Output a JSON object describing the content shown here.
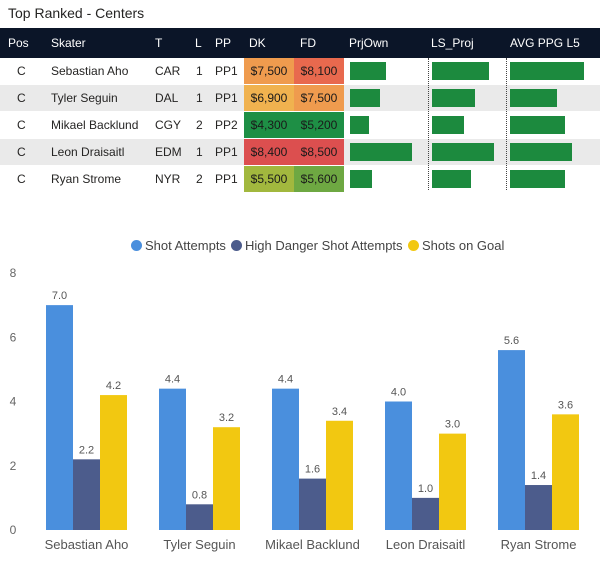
{
  "title": "Top Ranked - Centers",
  "table": {
    "headers": [
      "Pos",
      "Skater",
      "T",
      "L",
      "PP",
      "DK",
      "FD",
      "PrjOwn",
      "LS_Proj",
      "AVG PPG L5"
    ],
    "rows": [
      {
        "pos": "C",
        "skater": "Sebastian Aho",
        "team": "CAR",
        "line": "1",
        "pp": "PP1",
        "dk": "$7,500",
        "fd": "$8,100",
        "dk_color": "#ef9b4e",
        "fd_color": "#e8694e",
        "prjown": 0.48,
        "ls_proj": 0.82,
        "avg_ppg": 0.97
      },
      {
        "pos": "C",
        "skater": "Tyler Seguin",
        "team": "DAL",
        "line": "1",
        "pp": "PP1",
        "dk": "$6,900",
        "fd": "$7,500",
        "dk_color": "#f0b24f",
        "fd_color": "#ef9b4e",
        "prjown": 0.4,
        "ls_proj": 0.62,
        "avg_ppg": 0.62
      },
      {
        "pos": "C",
        "skater": "Mikael Backlund",
        "team": "CGY",
        "line": "2",
        "pp": "PP2",
        "dk": "$4,300",
        "fd": "$5,200",
        "dk_color": "#1e8f45",
        "fd_color": "#1e8f45",
        "prjown": 0.25,
        "ls_proj": 0.47,
        "avg_ppg": 0.72
      },
      {
        "pos": "C",
        "skater": "Leon Draisaitl",
        "team": "EDM",
        "line": "1",
        "pp": "PP1",
        "dk": "$8,400",
        "fd": "$8,500",
        "dk_color": "#dc4f4f",
        "fd_color": "#dc4f4f",
        "prjown": 0.84,
        "ls_proj": 0.9,
        "avg_ppg": 0.82
      },
      {
        "pos": "C",
        "skater": "Ryan Strome",
        "team": "NYR",
        "line": "2",
        "pp": "PP1",
        "dk": "$5,500",
        "fd": "$5,600",
        "dk_color": "#a2b83e",
        "fd_color": "#6ea842",
        "prjown": 0.3,
        "ls_proj": 0.57,
        "avg_ppg": 0.72
      }
    ],
    "bar_color": "#1c8a3e"
  },
  "chart_data": {
    "type": "bar",
    "title": "",
    "categories": [
      "Sebastian Aho",
      "Tyler Seguin",
      "Mikael Backlund",
      "Leon Draisaitl",
      "Ryan Strome"
    ],
    "series": [
      {
        "name": "Shot Attempts",
        "color": "#4a8fdd",
        "values": [
          7.0,
          4.4,
          4.4,
          4.0,
          5.6
        ]
      },
      {
        "name": "High Danger Shot Attempts",
        "color": "#4c5c8c",
        "values": [
          2.2,
          0.8,
          1.6,
          1.0,
          1.4
        ]
      },
      {
        "name": "Shots on Goal",
        "color": "#f2c811",
        "values": [
          4.2,
          3.2,
          3.4,
          3.0,
          3.6
        ]
      }
    ],
    "data_labels": [
      [
        "7.0",
        "4.4",
        "4.4",
        "4.0",
        "5.6"
      ],
      [
        "2.2",
        "0.8",
        "1.6",
        "1.0",
        "1.4"
      ],
      [
        "4.2",
        "3.2",
        "3.4",
        "3.0",
        "3.6"
      ]
    ],
    "yticks": [
      "0",
      "2",
      "4",
      "6",
      "8"
    ],
    "ylim": [
      0,
      8
    ],
    "legend_position": "top-center",
    "xlabel": "",
    "ylabel": ""
  }
}
